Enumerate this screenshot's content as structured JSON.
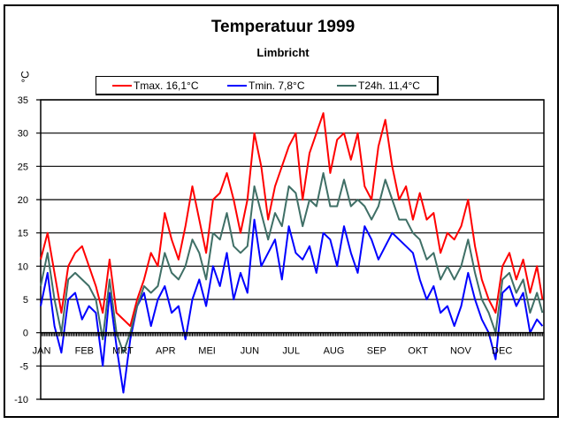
{
  "chart_data": {
    "type": "line",
    "title": "Temperatuur 1999",
    "subtitle": "Limbricht",
    "xlabel": "",
    "ylabel": "°C",
    "ylim": [
      -10,
      35
    ],
    "yticks": [
      "35",
      "30",
      "25",
      "20",
      "15",
      "10",
      "5",
      "0",
      "-5",
      "-10"
    ],
    "ytick_values": [
      35,
      30,
      25,
      20,
      15,
      10,
      5,
      0,
      -5,
      -10
    ],
    "grid": true,
    "legend_position": "top",
    "categories": [
      "JAN",
      "FEB",
      "MRT",
      "APR",
      "MEI",
      "JUN",
      "JUL",
      "AUG",
      "SEP",
      "OKT",
      "NOV",
      "DEC"
    ],
    "x_unit": "day of year",
    "x": [
      0,
      5,
      10,
      15,
      20,
      25,
      30,
      35,
      40,
      45,
      50,
      55,
      60,
      65,
      70,
      75,
      80,
      85,
      90,
      95,
      100,
      105,
      110,
      115,
      120,
      125,
      130,
      135,
      140,
      145,
      150,
      155,
      160,
      165,
      170,
      175,
      180,
      185,
      190,
      195,
      200,
      205,
      210,
      215,
      220,
      225,
      230,
      235,
      240,
      245,
      250,
      255,
      260,
      265,
      270,
      275,
      280,
      285,
      290,
      295,
      300,
      305,
      310,
      315,
      320,
      325,
      330,
      335,
      340,
      345,
      350,
      355,
      360,
      364
    ],
    "series": [
      {
        "name": "Tmax. 16,1°C",
        "color": "#ff0000",
        "values": [
          11,
          15,
          9,
          3,
          10,
          12,
          13,
          10,
          7,
          3,
          11,
          3,
          2,
          1,
          5,
          8,
          12,
          10,
          18,
          14,
          11,
          16,
          22,
          17,
          12,
          20,
          21,
          24,
          20,
          15,
          20,
          30,
          25,
          17,
          22,
          25,
          28,
          30,
          20,
          27,
          30,
          33,
          24,
          29,
          30,
          26,
          30,
          22,
          20,
          28,
          32,
          25,
          20,
          22,
          17,
          21,
          17,
          18,
          12,
          15,
          14,
          16,
          20,
          13,
          8,
          5,
          3,
          10,
          12,
          8,
          11,
          6,
          10,
          5
        ],
        "summary": "16,1°C"
      },
      {
        "name": "Tmin. 7,8°C",
        "color": "#0000ff",
        "values": [
          4,
          9,
          1,
          -3,
          5,
          6,
          2,
          4,
          3,
          -5,
          6,
          -2,
          -9,
          -1,
          4,
          6,
          1,
          5,
          7,
          3,
          4,
          -1,
          5,
          8,
          4,
          10,
          7,
          12,
          5,
          9,
          6,
          17,
          10,
          12,
          14,
          8,
          16,
          12,
          11,
          13,
          9,
          15,
          14,
          10,
          16,
          12,
          9,
          16,
          14,
          11,
          13,
          15,
          14,
          13,
          12,
          8,
          5,
          7,
          3,
          4,
          1,
          4,
          9,
          5,
          2,
          0,
          -4,
          6,
          7,
          4,
          6,
          0,
          2,
          1
        ],
        "summary": "7,8°C"
      },
      {
        "name": "T24h. 11,4°C",
        "color": "#3f6f66",
        "values": [
          7,
          12,
          5,
          0,
          8,
          9,
          8,
          7,
          5,
          -1,
          8,
          0,
          -3,
          0,
          4,
          7,
          6,
          7,
          12,
          9,
          8,
          10,
          14,
          12,
          8,
          15,
          14,
          18,
          13,
          12,
          13,
          22,
          18,
          14,
          18,
          16,
          22,
          21,
          16,
          20,
          19,
          24,
          19,
          19,
          23,
          19,
          20,
          19,
          17,
          19,
          23,
          20,
          17,
          17,
          15,
          14,
          11,
          12,
          8,
          10,
          8,
          10,
          14,
          9,
          5,
          3,
          0,
          8,
          9,
          6,
          8,
          3,
          6,
          3
        ],
        "summary": "11,4°C"
      }
    ]
  },
  "legend": {
    "tmax": "Tmax. 16,1°C",
    "tmin": "Tmin. 7,8°C",
    "t24": "T24h. 11,4°C"
  }
}
